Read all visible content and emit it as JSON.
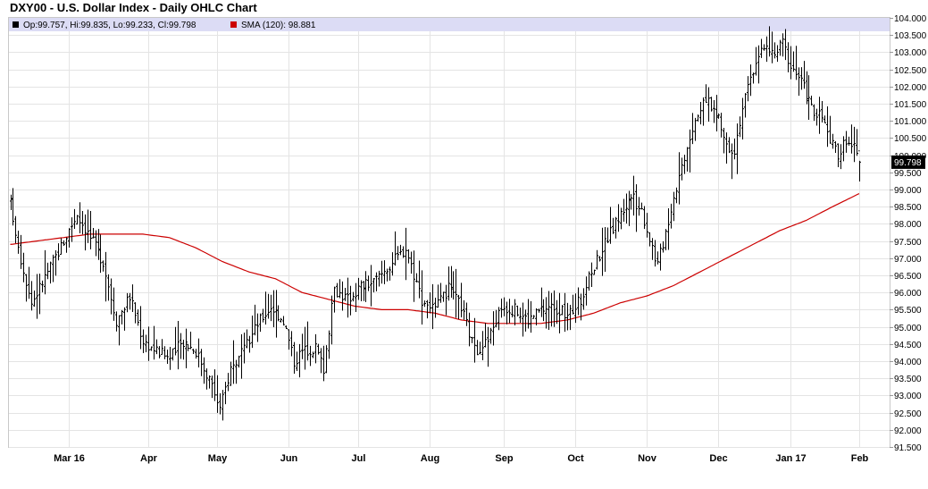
{
  "chart_data": {
    "type": "ohlc",
    "title": "DXY00 - U.S. Dollar Index - Daily OHLC Chart",
    "legend": {
      "placement": "top-left",
      "ohlc_text": "Op:99.757, Hi:99.835, Lo:99.233, Cl:99.798",
      "sma_text": "SMA (120): 98.881",
      "ohlc_color": "#000000",
      "sma_color": "#cc0000"
    },
    "last_price_label": "99.798",
    "last_price": 99.798,
    "x_ticks": [
      "Mar 16",
      "Apr",
      "May",
      "Jun",
      "Jul",
      "Aug",
      "Sep",
      "Oct",
      "Nov",
      "Dec",
      "Jan 17",
      "Feb"
    ],
    "y_ticks": [
      "104.000",
      "103.500",
      "103.000",
      "102.500",
      "102.000",
      "101.500",
      "101.000",
      "100.500",
      "100.000",
      "99.500",
      "99.000",
      "98.500",
      "98.000",
      "97.500",
      "97.000",
      "96.500",
      "96.000",
      "95.500",
      "95.000",
      "94.500",
      "94.000",
      "93.500",
      "93.000",
      "92.500",
      "92.000",
      "91.500"
    ],
    "ylim": [
      91.5,
      104.0
    ],
    "grid": true,
    "price_series_anchors": [
      [
        0,
        98.6
      ],
      [
        4,
        97.0
      ],
      [
        8,
        95.7
      ],
      [
        12,
        96.3
      ],
      [
        16,
        96.9
      ],
      [
        20,
        97.5
      ],
      [
        25,
        98.3
      ],
      [
        30,
        97.6
      ],
      [
        35,
        96.9
      ],
      [
        40,
        95.2
      ],
      [
        45,
        95.9
      ],
      [
        50,
        94.6
      ],
      [
        55,
        94.3
      ],
      [
        60,
        94.1
      ],
      [
        65,
        94.6
      ],
      [
        70,
        94.3
      ],
      [
        75,
        93.5
      ],
      [
        79,
        92.6
      ],
      [
        83,
        93.8
      ],
      [
        88,
        94.3
      ],
      [
        93,
        95.1
      ],
      [
        98,
        95.6
      ],
      [
        103,
        95.2
      ],
      [
        107,
        94.0
      ],
      [
        110,
        94.3
      ],
      [
        115,
        94.4
      ],
      [
        118,
        93.8
      ],
      [
        122,
        96.1
      ],
      [
        127,
        95.8
      ],
      [
        132,
        96.2
      ],
      [
        137,
        96.3
      ],
      [
        143,
        96.8
      ],
      [
        149,
        97.3
      ],
      [
        155,
        95.8
      ],
      [
        160,
        95.5
      ],
      [
        165,
        96.1
      ],
      [
        170,
        95.6
      ],
      [
        175,
        94.3
      ],
      [
        180,
        94.6
      ],
      [
        185,
        95.6
      ],
      [
        190,
        95.5
      ],
      [
        195,
        95.2
      ],
      [
        200,
        95.5
      ],
      [
        205,
        95.6
      ],
      [
        210,
        95.3
      ],
      [
        215,
        95.8
      ],
      [
        220,
        96.8
      ],
      [
        225,
        97.6
      ],
      [
        230,
        98.3
      ],
      [
        234,
        98.8
      ],
      [
        238,
        98.4
      ],
      [
        241,
        97.6
      ],
      [
        244,
        96.8
      ],
      [
        247,
        97.8
      ],
      [
        250,
        98.8
      ],
      [
        253,
        99.7
      ],
      [
        256,
        100.6
      ],
      [
        259,
        101.3
      ],
      [
        263,
        101.6
      ],
      [
        267,
        101.0
      ],
      [
        270,
        100.3
      ],
      [
        273,
        100.2
      ],
      [
        276,
        101.4
      ],
      [
        279,
        102.2
      ],
      [
        282,
        103.0
      ],
      [
        285,
        103.1
      ],
      [
        288,
        102.9
      ],
      [
        291,
        103.3
      ],
      [
        294,
        102.6
      ],
      [
        297,
        102.3
      ],
      [
        300,
        101.8
      ],
      [
        303,
        101.2
      ],
      [
        306,
        101.1
      ],
      [
        309,
        100.4
      ],
      [
        312,
        100.0
      ],
      [
        315,
        100.5
      ],
      [
        318,
        100.2
      ],
      [
        320,
        99.8
      ]
    ],
    "sma_series": {
      "name": "SMA (120)",
      "anchors": [
        [
          0,
          97.4
        ],
        [
          10,
          97.5
        ],
        [
          20,
          97.6
        ],
        [
          30,
          97.7
        ],
        [
          38,
          97.7
        ],
        [
          50,
          97.7
        ],
        [
          60,
          97.6
        ],
        [
          70,
          97.3
        ],
        [
          80,
          96.9
        ],
        [
          90,
          96.6
        ],
        [
          100,
          96.4
        ],
        [
          110,
          96.0
        ],
        [
          120,
          95.8
        ],
        [
          130,
          95.6
        ],
        [
          140,
          95.5
        ],
        [
          150,
          95.5
        ],
        [
          160,
          95.4
        ],
        [
          170,
          95.2
        ],
        [
          180,
          95.1
        ],
        [
          190,
          95.1
        ],
        [
          200,
          95.1
        ],
        [
          210,
          95.2
        ],
        [
          220,
          95.4
        ],
        [
          230,
          95.7
        ],
        [
          240,
          95.9
        ],
        [
          250,
          96.2
        ],
        [
          260,
          96.6
        ],
        [
          270,
          97.0
        ],
        [
          280,
          97.4
        ],
        [
          290,
          97.8
        ],
        [
          300,
          98.1
        ],
        [
          310,
          98.5
        ],
        [
          320,
          98.881
        ]
      ]
    }
  }
}
